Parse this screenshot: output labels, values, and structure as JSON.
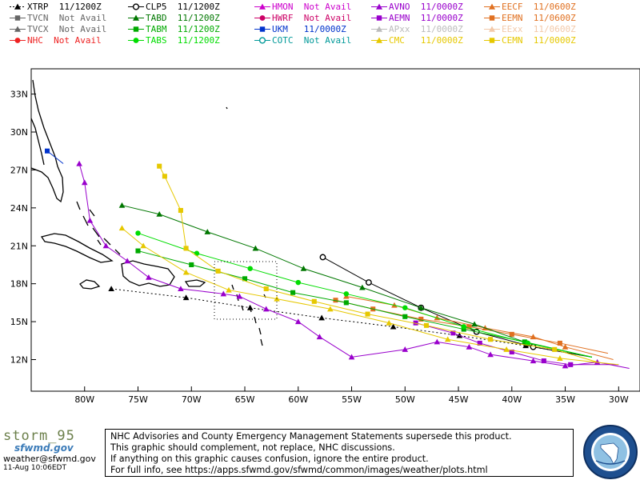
{
  "legend": [
    {
      "label": "XTRP  11/1200Z",
      "color": "#000000",
      "marker": "triangle",
      "line": "dotted"
    },
    {
      "label": "CLP5  11/1200Z",
      "color": "#000000",
      "marker": "circle-open",
      "line": "solid"
    },
    {
      "label": "HMON  Not Avail",
      "color": "#cc00cc",
      "marker": "triangle",
      "line": "solid"
    },
    {
      "label": "AVNO  11/0000Z",
      "color": "#9900cc",
      "marker": "triangle",
      "line": "solid"
    },
    {
      "label": "EECF  11/0600Z",
      "color": "#e07020",
      "marker": "triangle",
      "line": "solid"
    },
    {
      "label": "TVCN  Not Avail",
      "color": "#666666",
      "marker": "square",
      "line": "solid"
    },
    {
      "label": "TABD  11/1200Z",
      "color": "#007700",
      "marker": "triangle",
      "line": "solid"
    },
    {
      "label": "HWRF  Not Avail",
      "color": "#cc0066",
      "marker": "circle",
      "line": "solid"
    },
    {
      "label": "AEMN  11/0000Z",
      "color": "#9900cc",
      "marker": "square",
      "line": "solid"
    },
    {
      "label": "EEMN  11/0600Z",
      "color": "#e07020",
      "marker": "square",
      "line": "solid"
    },
    {
      "label": "TVCX  Not Avail",
      "color": "#666666",
      "marker": "triangle",
      "line": "solid"
    },
    {
      "label": "TABM  11/1200Z",
      "color": "#00aa00",
      "marker": "square",
      "line": "solid"
    },
    {
      "label": "UKM   11/0000Z",
      "color": "#0033cc",
      "marker": "square",
      "line": "solid"
    },
    {
      "label": "APxx  11/0000Z",
      "color": "#bbbbbb",
      "marker": "triangle",
      "line": "solid"
    },
    {
      "label": "EExx  11/0600Z",
      "color": "#f3c9a8",
      "marker": "triangle",
      "line": "solid"
    },
    {
      "label": "NHC  Not Avail",
      "color": "#ee2222",
      "marker": "circle",
      "line": "solid"
    },
    {
      "label": "TABS  11/1200Z",
      "color": "#00dd00",
      "marker": "circle",
      "line": "solid"
    },
    {
      "label": "COTC  Not Avail",
      "color": "#009999",
      "marker": "circle-open",
      "line": "solid"
    },
    {
      "label": "CMC   11/0000Z",
      "color": "#e6c800",
      "marker": "triangle",
      "line": "solid"
    },
    {
      "label": "CEMN  11/0000Z",
      "color": "#e6c800",
      "marker": "square",
      "line": "solid"
    }
  ],
  "chart_data": {
    "type": "line",
    "title": "",
    "xlabel": "",
    "ylabel": "",
    "xlim": [
      -85,
      -28
    ],
    "ylim": [
      9.5,
      35
    ],
    "x_ticks": [
      -80,
      -75,
      -70,
      -65,
      -60,
      -55,
      -50,
      -45,
      -40,
      -35,
      -30
    ],
    "x_tick_labels": [
      "80W",
      "75W",
      "70W",
      "65W",
      "60W",
      "55W",
      "50W",
      "45W",
      "40W",
      "35W",
      "30W"
    ],
    "y_ticks": [
      12,
      15,
      18,
      21,
      24,
      27,
      30,
      33
    ],
    "y_tick_labels": [
      "12N",
      "15N",
      "18N",
      "21N",
      "24N",
      "27N",
      "30N",
      "33N"
    ],
    "grid": false,
    "series": [
      {
        "name": "XTRP",
        "color": "#000000",
        "marker": "triangle",
        "dash": "2,3",
        "points": [
          [
            -32.5,
            12.2
          ],
          [
            -38.7,
            13.1
          ],
          [
            -44.9,
            13.9
          ],
          [
            -51.1,
            14.6
          ],
          [
            -57.8,
            15.3
          ],
          [
            -64.5,
            16.1
          ],
          [
            -70.5,
            16.9
          ],
          [
            -77.5,
            17.6
          ]
        ]
      },
      {
        "name": "CLP5",
        "color": "#000000",
        "marker": "circle-open",
        "dash": "",
        "points": [
          [
            -32.5,
            12.2
          ],
          [
            -38.0,
            13.0
          ],
          [
            -43.3,
            14.2
          ],
          [
            -48.5,
            16.1
          ],
          [
            -53.4,
            18.1
          ],
          [
            -57.7,
            20.1
          ]
        ]
      },
      {
        "name": "AVNO",
        "color": "#9900cc",
        "marker": "triangle",
        "dash": "",
        "points": [
          [
            -29.0,
            11.3
          ],
          [
            -32.0,
            11.8
          ],
          [
            -35.0,
            11.5
          ],
          [
            -38.0,
            11.9
          ],
          [
            -42.0,
            12.4
          ],
          [
            -44.0,
            13.0
          ],
          [
            -47.0,
            13.4
          ],
          [
            -50.0,
            12.8
          ],
          [
            -55.0,
            12.2
          ],
          [
            -58.0,
            13.8
          ],
          [
            -60.0,
            15.0
          ],
          [
            -63.0,
            16.0
          ],
          [
            -65.5,
            17.0
          ],
          [
            -67.0,
            17.2
          ],
          [
            -71.0,
            17.6
          ],
          [
            -74.0,
            18.5
          ],
          [
            -76.0,
            19.8
          ],
          [
            -78.0,
            21.0
          ],
          [
            -79.5,
            23.0
          ],
          [
            -80.0,
            26.0
          ],
          [
            -80.5,
            27.5
          ]
        ]
      },
      {
        "name": "AEMN",
        "color": "#9900cc",
        "marker": "square",
        "dash": "",
        "points": [
          [
            -30.0,
            11.6
          ],
          [
            -34.5,
            11.6
          ],
          [
            -37.0,
            11.9
          ],
          [
            -40.0,
            12.6
          ],
          [
            -43.0,
            13.3
          ],
          [
            -45.5,
            14.1
          ],
          [
            -49.0,
            14.9
          ]
        ]
      },
      {
        "name": "EECF",
        "color": "#e07020",
        "marker": "triangle",
        "dash": "",
        "points": [
          [
            -30.5,
            12.0
          ],
          [
            -35.0,
            13.0
          ],
          [
            -38.0,
            13.8
          ],
          [
            -42.5,
            14.5
          ],
          [
            -47.0,
            15.3
          ],
          [
            -51.0,
            16.3
          ],
          [
            -55.5,
            17.0
          ]
        ]
      },
      {
        "name": "EEMN",
        "color": "#e07020",
        "marker": "square",
        "dash": "",
        "points": [
          [
            -31.0,
            12.5
          ],
          [
            -35.5,
            13.3
          ],
          [
            -40.0,
            14.0
          ],
          [
            -44.0,
            14.6
          ],
          [
            -48.5,
            15.2
          ],
          [
            -53.0,
            16.0
          ],
          [
            -56.5,
            16.7
          ]
        ]
      },
      {
        "name": "TABD",
        "color": "#007700",
        "marker": "triangle",
        "dash": "",
        "points": [
          [
            -32.5,
            12.2
          ],
          [
            -38.5,
            13.3
          ],
          [
            -43.5,
            14.8
          ],
          [
            -48.5,
            16.1
          ],
          [
            -54.0,
            17.7
          ],
          [
            -59.5,
            19.2
          ],
          [
            -64.0,
            20.8
          ],
          [
            -68.5,
            22.1
          ],
          [
            -73.0,
            23.5
          ],
          [
            -76.5,
            24.2
          ]
        ]
      },
      {
        "name": "TABM",
        "color": "#00aa00",
        "marker": "square",
        "dash": "",
        "points": [
          [
            -32.5,
            12.2
          ],
          [
            -38.8,
            13.4
          ],
          [
            -44.5,
            14.4
          ],
          [
            -50.0,
            15.4
          ],
          [
            -55.5,
            16.5
          ],
          [
            -60.5,
            17.3
          ],
          [
            -65.0,
            18.4
          ],
          [
            -70.0,
            19.5
          ],
          [
            -75.0,
            20.6
          ]
        ]
      },
      {
        "name": "TABS",
        "color": "#00dd00",
        "marker": "circle",
        "dash": "",
        "points": [
          [
            -32.5,
            12.2
          ],
          [
            -38.5,
            13.3
          ],
          [
            -44.5,
            14.6
          ],
          [
            -50.0,
            16.1
          ],
          [
            -55.5,
            17.2
          ],
          [
            -60.0,
            18.1
          ],
          [
            -64.5,
            19.2
          ],
          [
            -69.5,
            20.4
          ],
          [
            -75.0,
            22.0
          ]
        ]
      },
      {
        "name": "UKM",
        "color": "#0033cc",
        "marker": "square",
        "dash": "",
        "points": [
          [
            -82.0,
            27.5
          ],
          [
            -83.5,
            28.5
          ]
        ]
      },
      {
        "name": "CMC",
        "color": "#e6c800",
        "marker": "triangle",
        "dash": "",
        "points": [
          [
            -30.0,
            11.6
          ],
          [
            -35.5,
            12.1
          ],
          [
            -40.5,
            12.8
          ],
          [
            -46.0,
            13.6
          ],
          [
            -51.5,
            14.9
          ],
          [
            -57.0,
            16.0
          ],
          [
            -62.0,
            16.8
          ],
          [
            -66.5,
            17.5
          ],
          [
            -70.5,
            18.9
          ],
          [
            -74.5,
            21.0
          ],
          [
            -76.5,
            22.4
          ]
        ]
      },
      {
        "name": "CEMN",
        "color": "#e6c800",
        "marker": "square",
        "dash": "",
        "points": [
          [
            -32.0,
            11.8
          ],
          [
            -36.0,
            12.8
          ],
          [
            -42.0,
            13.6
          ],
          [
            -48.0,
            14.7
          ],
          [
            -53.5,
            15.6
          ],
          [
            -58.5,
            16.6
          ],
          [
            -63.0,
            17.6
          ],
          [
            -67.5,
            19.0
          ],
          [
            -70.5,
            20.8
          ],
          [
            -71.0,
            23.8
          ],
          [
            -72.5,
            26.5
          ],
          [
            -73.0,
            27.3
          ]
        ]
      }
    ]
  },
  "brand": {
    "name": "storm_95",
    "site": "sfwmd.gov"
  },
  "email": "weather@sfwmd.gov",
  "timestamp": "11-Aug 10:06EDT",
  "disclaimer": [
    "NHC Advisories and County Emergency Management Statements supersede this product.",
    "This graphic should complement, not replace, NHC discussions.",
    "If anything on this graphic causes confusion, ignore the entire product.",
    "For full info, see  https://apps.sfwmd.gov/sfwmd/common/images/weather/plots.html"
  ]
}
